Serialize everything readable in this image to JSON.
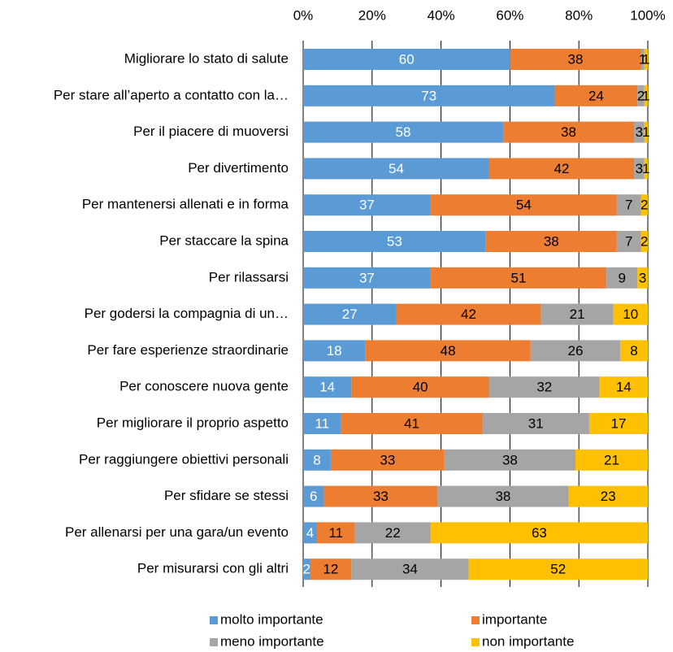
{
  "chart_data": {
    "type": "stacked_bar_horizontal",
    "categories": [
      "Migliorare lo stato di salute",
      "Per stare all’aperto a contatto con la…",
      "Per il piacere di muoversi",
      "Per divertimento",
      "Per mantenersi allenati e in forma",
      "Per staccare la spina",
      "Per rilassarsi",
      "Per godersi la compagnia di un…",
      "Per fare esperienze straordinarie",
      "Per conoscere nuova gente",
      "Per migliorare il proprio aspetto",
      "Per raggiungere obiettivi personali",
      "Per sfidare se stessi",
      "Per allenarsi per una gara/un evento",
      "Per misurarsi con gli altri"
    ],
    "series": [
      {
        "name": "molto importante",
        "color": "#5b9bd5",
        "values": [
          60,
          73,
          58,
          54,
          37,
          53,
          37,
          27,
          18,
          14,
          11,
          8,
          6,
          4,
          2
        ]
      },
      {
        "name": "importante",
        "color": "#ed7d31",
        "values": [
          38,
          24,
          38,
          42,
          54,
          38,
          51,
          42,
          48,
          40,
          41,
          33,
          33,
          11,
          12
        ]
      },
      {
        "name": "meno importante",
        "color": "#a5a5a5",
        "values": [
          1,
          2,
          3,
          3,
          7,
          7,
          9,
          21,
          26,
          32,
          31,
          38,
          38,
          22,
          34
        ]
      },
      {
        "name": "non importante",
        "color": "#ffc000",
        "values": [
          1,
          1,
          1,
          1,
          2,
          2,
          3,
          10,
          8,
          14,
          17,
          21,
          23,
          63,
          52
        ]
      }
    ],
    "xlim": [
      0,
      100
    ],
    "xticks": [
      {
        "value": 0,
        "label": "0%"
      },
      {
        "value": 20,
        "label": "20%"
      },
      {
        "value": 40,
        "label": "40%"
      },
      {
        "value": 60,
        "label": "60%"
      },
      {
        "value": 80,
        "label": "80%"
      },
      {
        "value": 100,
        "label": "100%"
      }
    ],
    "grid": true,
    "legend": "bottom"
  }
}
